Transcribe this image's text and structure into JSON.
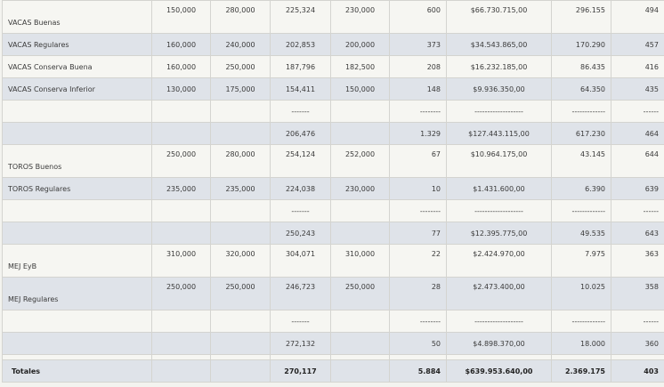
{
  "rows": [
    {
      "label": "VACAS Buenas",
      "style": "light",
      "h": 37,
      "align": "top",
      "labelAlign": "bottom",
      "c": [
        "150,000",
        "280,000",
        "225,324",
        "230,000",
        "600",
        "$66.730.715,00",
        "296.155",
        "494"
      ]
    },
    {
      "label": "VACAS Regulares",
      "style": "dark",
      "h": 25,
      "align": "mid",
      "labelAlign": "mid",
      "c": [
        "160,000",
        "240,000",
        "202,853",
        "200,000",
        "373",
        "$34.543.865,00",
        "170.290",
        "457"
      ]
    },
    {
      "label": "VACAS Conserva Buena",
      "style": "light",
      "h": 25,
      "align": "mid",
      "labelAlign": "mid",
      "c": [
        "160,000",
        "250,000",
        "187,796",
        "182,500",
        "208",
        "$16.232.185,00",
        "86.435",
        "416"
      ]
    },
    {
      "label": "VACAS Conserva Inferior",
      "style": "dark",
      "h": 25,
      "align": "mid",
      "labelAlign": "mid",
      "c": [
        "130,000",
        "175,000",
        "154,411",
        "150,000",
        "148",
        "$9.936.350,00",
        "64.350",
        "435"
      ]
    },
    {
      "label": "",
      "style": "light",
      "h": 25,
      "align": "mid",
      "labelAlign": "mid",
      "c": [
        "",
        "",
        "-------",
        "",
        "--------",
        "-------------------",
        "-------------",
        "------"
      ]
    },
    {
      "label": "",
      "style": "dark",
      "h": 25,
      "align": "mid",
      "labelAlign": "mid",
      "c": [
        "",
        "",
        "206,476",
        "",
        "1.329",
        "$127.443.115,00",
        "617.230",
        "464"
      ]
    },
    {
      "label": "TOROS Buenos",
      "style": "light",
      "h": 37,
      "align": "top",
      "labelAlign": "bottom",
      "c": [
        "250,000",
        "280,000",
        "254,124",
        "252,000",
        "67",
        "$10.964.175,00",
        "43.145",
        "644"
      ]
    },
    {
      "label": "TOROS Regulares",
      "style": "dark",
      "h": 25,
      "align": "mid",
      "labelAlign": "mid",
      "c": [
        "235,000",
        "235,000",
        "224,038",
        "230,000",
        "10",
        "$1.431.600,00",
        "6.390",
        "639"
      ]
    },
    {
      "label": "",
      "style": "light",
      "h": 25,
      "align": "mid",
      "labelAlign": "mid",
      "c": [
        "",
        "",
        "-------",
        "",
        "--------",
        "-------------------",
        "-------------",
        "------"
      ]
    },
    {
      "label": "",
      "style": "dark",
      "h": 25,
      "align": "mid",
      "labelAlign": "mid",
      "c": [
        "",
        "",
        "250,243",
        "",
        "77",
        "$12.395.775,00",
        "49.535",
        "643"
      ]
    },
    {
      "label": "MEJ EyB",
      "style": "light",
      "h": 37,
      "align": "top",
      "labelAlign": "bottom",
      "c": [
        "310,000",
        "320,000",
        "304,071",
        "310,000",
        "22",
        "$2.424.970,00",
        "7.975",
        "363"
      ]
    },
    {
      "label": "MEJ Regulares",
      "style": "dark",
      "h": 37,
      "align": "top",
      "labelAlign": "bottom",
      "c": [
        "250,000",
        "250,000",
        "246,723",
        "250,000",
        "28",
        "$2.473.400,00",
        "10.025",
        "358"
      ]
    },
    {
      "label": "",
      "style": "light",
      "h": 25,
      "align": "mid",
      "labelAlign": "mid",
      "c": [
        "",
        "",
        "-------",
        "",
        "--------",
        "-------------------",
        "-------------",
        "------"
      ]
    },
    {
      "label": "",
      "style": "dark",
      "h": 25,
      "align": "mid",
      "labelAlign": "mid",
      "c": [
        "",
        "",
        "272,132",
        "",
        "50",
        "$4.898.370,00",
        "18.000",
        "360"
      ]
    },
    {
      "label": "",
      "style": "light",
      "h": 6,
      "align": "mid",
      "labelAlign": "mid",
      "c": [
        "",
        "",
        "",
        "",
        "",
        "",
        "",
        ""
      ]
    },
    {
      "label": "Totales",
      "style": "dark totals",
      "h": 25,
      "align": "mid",
      "labelAlign": "mid",
      "c": [
        "",
        "",
        "270,117",
        "",
        "5.884",
        "$639.953.640,00",
        "2.369.175",
        "403"
      ]
    }
  ]
}
